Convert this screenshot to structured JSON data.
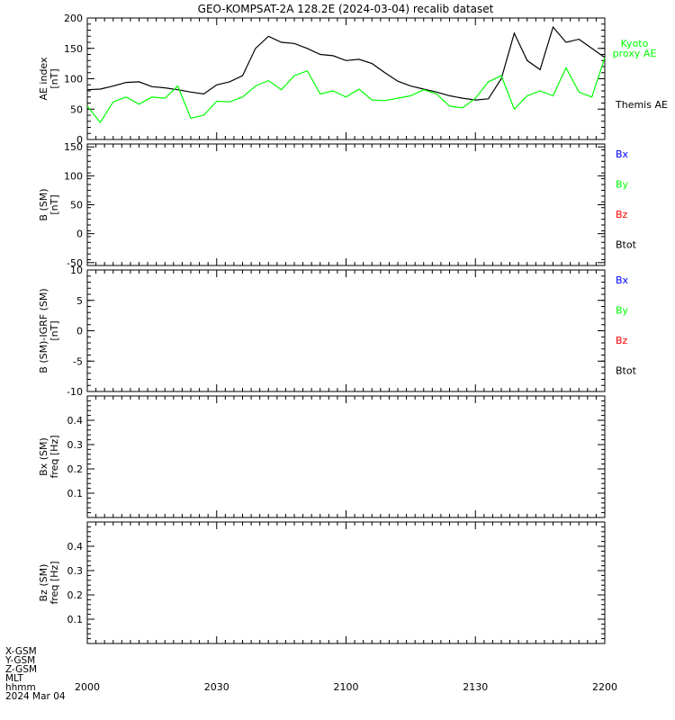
{
  "title": "GEO-KOMPSAT-2A 128.2E (2024-03-04) recalib dataset",
  "colors": {
    "axis": "#000000",
    "black": "#000000",
    "green": "#00ff00",
    "blue": "#0000ff",
    "red": "#ff0000"
  },
  "x_axis": {
    "tick_labels": [
      "2000",
      "2030",
      "2100",
      "2130",
      "2200"
    ],
    "row_labels": [
      "X-GSM",
      "Y-GSM",
      "Z-GSM",
      "MLT",
      "hhmm",
      "2024 Mar 04"
    ]
  },
  "chart_data": [
    {
      "type": "line",
      "ylabel": [
        "AE index",
        "[nT]"
      ],
      "ylim": [
        0,
        200
      ],
      "yticks": [
        "0",
        "50",
        "100",
        "150",
        "200"
      ],
      "xlim": [
        0,
        120
      ],
      "x_unit": "minutes after 20:00 UT",
      "legend": [
        {
          "lines": [
            "Kyoto",
            "proxy AE"
          ],
          "color": "#00ff00",
          "placement": "right-top"
        },
        {
          "lines": [
            "Themis AE"
          ],
          "color": "#000000",
          "placement": "right-lower"
        }
      ],
      "series": [
        {
          "name": "Themis AE",
          "color": "#000000",
          "x": [
            0,
            3,
            6,
            9,
            12,
            15,
            18,
            21,
            24,
            27,
            30,
            33,
            36,
            39,
            42,
            45,
            48,
            51,
            54,
            57,
            60,
            63,
            66,
            69,
            72,
            75,
            78,
            81,
            84,
            87,
            90,
            93,
            96,
            99,
            102,
            105,
            108,
            111,
            114,
            117,
            120
          ],
          "values": [
            82,
            83,
            88,
            94,
            95,
            87,
            85,
            82,
            78,
            75,
            90,
            95,
            105,
            150,
            170,
            160,
            158,
            150,
            140,
            138,
            130,
            132,
            125,
            110,
            96,
            88,
            83,
            78,
            72,
            68,
            65,
            67,
            100,
            175,
            130,
            115,
            185,
            160,
            165,
            150,
            135
          ]
        },
        {
          "name": "Kyoto proxy AE",
          "color": "#00ff00",
          "x": [
            0,
            3,
            6,
            9,
            12,
            15,
            18,
            21,
            24,
            27,
            30,
            33,
            36,
            39,
            42,
            45,
            48,
            51,
            54,
            57,
            60,
            63,
            66,
            69,
            72,
            75,
            78,
            81,
            84,
            87,
            90,
            93,
            96,
            99,
            102,
            105,
            108,
            111,
            114,
            117,
            120
          ],
          "values": [
            55,
            28,
            62,
            70,
            58,
            70,
            68,
            88,
            35,
            40,
            63,
            62,
            70,
            88,
            97,
            82,
            105,
            113,
            75,
            80,
            70,
            83,
            65,
            64,
            68,
            72,
            82,
            75,
            55,
            52,
            68,
            95,
            105,
            50,
            72,
            80,
            72,
            118,
            78,
            70,
            135
          ]
        }
      ]
    },
    {
      "type": "line",
      "ylabel": [
        "B (SM)",
        "[nT]"
      ],
      "ylim": [
        -55,
        155
      ],
      "yticks": [
        "-50",
        "0",
        "50",
        "100",
        "150"
      ],
      "legend": [
        {
          "lines": [
            "Bx"
          ],
          "color": "#0000ff"
        },
        {
          "lines": [
            "By"
          ],
          "color": "#00ff00"
        },
        {
          "lines": [
            "Bz"
          ],
          "color": "#ff0000"
        },
        {
          "lines": [
            "Btot"
          ],
          "color": "#000000"
        }
      ],
      "series": []
    },
    {
      "type": "line",
      "ylabel": [
        "B (SM)-IGRF (SM)",
        "[nT]"
      ],
      "ylim": [
        -10,
        10
      ],
      "yticks": [
        "-10",
        "-5",
        "0",
        "5",
        "10"
      ],
      "legend": [
        {
          "lines": [
            "Bx"
          ],
          "color": "#0000ff"
        },
        {
          "lines": [
            "By"
          ],
          "color": "#00ff00"
        },
        {
          "lines": [
            "Bz"
          ],
          "color": "#ff0000"
        },
        {
          "lines": [
            "Btot"
          ],
          "color": "#000000"
        }
      ],
      "series": []
    },
    {
      "type": "heatmap",
      "ylabel": [
        "Bx (SM)",
        "freq [Hz]"
      ],
      "ylim": [
        0,
        0.5
      ],
      "yticks": [
        "0.1",
        "0.2",
        "0.3",
        "0.4"
      ],
      "series": []
    },
    {
      "type": "heatmap",
      "ylabel": [
        "Bz (SM)",
        "freq [Hz]"
      ],
      "ylim": [
        0,
        0.5
      ],
      "yticks": [
        "0.1",
        "0.2",
        "0.3",
        "0.4"
      ],
      "series": []
    }
  ]
}
